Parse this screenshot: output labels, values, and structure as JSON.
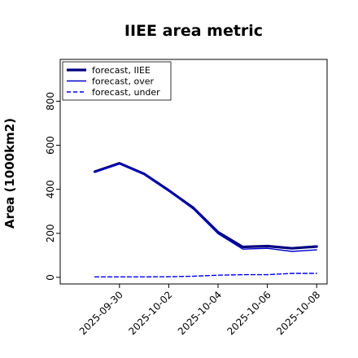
{
  "chart_data": {
    "type": "line",
    "title": "IIEE area metric",
    "ylabel": "Area (1000km2)",
    "xlabel": "",
    "x": [
      "2025-09-29",
      "2025-09-30",
      "2025-10-01",
      "2025-10-02",
      "2025-10-03",
      "2025-10-04",
      "2025-10-05",
      "2025-10-06",
      "2025-10-07",
      "2025-10-08"
    ],
    "x_ticks": [
      "2025-09-30",
      "2025-10-02",
      "2025-10-04",
      "2025-10-06",
      "2025-10-08"
    ],
    "x_tick_colors": [
      "#1a8a1a",
      "#000000",
      "#000000",
      "#000000",
      "#000000"
    ],
    "ylim": [
      -30,
      990
    ],
    "y_ticks": [
      0,
      200,
      400,
      600,
      800
    ],
    "grid": false,
    "legend_position": "top-left",
    "series": [
      {
        "name": "forecast, IIEE",
        "color": "#00007f",
        "style": "solid-thick",
        "values": [
          480,
          518,
          470,
          395,
          315,
          205,
          138,
          142,
          132,
          140
        ]
      },
      {
        "name": "forecast, over",
        "color": "#0000cc",
        "style": "solid",
        "values": [
          478,
          516,
          468,
          392,
          310,
          198,
          128,
          132,
          118,
          125
        ]
      },
      {
        "name": "forecast, under",
        "color": "#0000ff",
        "style": "dashed",
        "values": [
          2,
          2,
          2,
          3,
          5,
          10,
          12,
          12,
          18,
          18
        ]
      }
    ]
  }
}
